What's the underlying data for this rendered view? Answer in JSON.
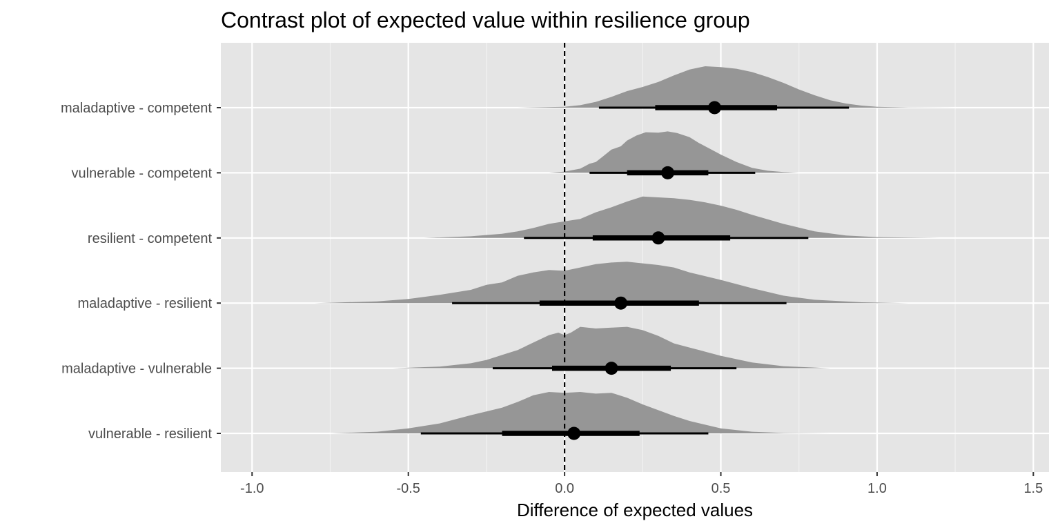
{
  "chart_data": {
    "type": "halfeye",
    "title": "Contrast plot of expected value within resilience group",
    "xlabel": "Difference of expected values",
    "ylabel": "",
    "xlim": [
      -1.1,
      1.55
    ],
    "x_ticks": [
      -1.0,
      -0.5,
      0.0,
      0.5,
      1.0,
      1.5
    ],
    "x_tick_labels": [
      "-1.0",
      "-0.5",
      "0.0",
      "0.5",
      "1.0",
      "1.5"
    ],
    "reference_line": {
      "x": 0,
      "style": "dashed"
    },
    "grid": true,
    "legend": "none",
    "colors": {
      "panel": "#e5e5e5",
      "grid": "#ffffff",
      "density": "#969696",
      "interval": "#000000",
      "point": "#000000"
    },
    "series": [
      {
        "name": "maladaptive - competent",
        "point": 0.48,
        "interval_66": [
          0.29,
          0.68
        ],
        "interval_95": [
          0.11,
          0.91
        ],
        "density": {
          "x": [
            -0.15,
            0.0,
            0.05,
            0.1,
            0.15,
            0.2,
            0.25,
            0.3,
            0.35,
            0.4,
            0.45,
            0.5,
            0.55,
            0.6,
            0.65,
            0.7,
            0.75,
            0.8,
            0.85,
            0.9,
            0.95,
            1.0,
            1.1,
            1.25
          ],
          "y": [
            0.0,
            0.02,
            0.06,
            0.14,
            0.26,
            0.4,
            0.5,
            0.62,
            0.78,
            0.92,
            1.0,
            0.98,
            0.94,
            0.86,
            0.74,
            0.6,
            0.44,
            0.3,
            0.18,
            0.1,
            0.05,
            0.02,
            0.005,
            0.0
          ]
        }
      },
      {
        "name": "vulnerable - competent",
        "point": 0.33,
        "interval_66": [
          0.2,
          0.46
        ],
        "interval_95": [
          0.08,
          0.61
        ],
        "density": {
          "x": [
            -0.05,
            0.0,
            0.05,
            0.08,
            0.1,
            0.12,
            0.15,
            0.18,
            0.2,
            0.23,
            0.26,
            0.3,
            0.33,
            0.36,
            0.4,
            0.43,
            0.46,
            0.5,
            0.55,
            0.6,
            0.65,
            0.7,
            0.75
          ],
          "y": [
            0.0,
            0.03,
            0.1,
            0.22,
            0.26,
            0.38,
            0.56,
            0.64,
            0.78,
            0.9,
            0.98,
            0.97,
            1.0,
            0.96,
            0.86,
            0.72,
            0.6,
            0.44,
            0.26,
            0.12,
            0.05,
            0.02,
            0.0
          ]
        }
      },
      {
        "name": "resilient - competent",
        "point": 0.3,
        "interval_66": [
          0.09,
          0.53
        ],
        "interval_95": [
          -0.13,
          0.78
        ],
        "density": {
          "x": [
            -0.45,
            -0.3,
            -0.2,
            -0.15,
            -0.1,
            -0.05,
            0.0,
            0.05,
            0.1,
            0.15,
            0.2,
            0.25,
            0.3,
            0.35,
            0.4,
            0.45,
            0.5,
            0.55,
            0.6,
            0.7,
            0.8,
            0.9,
            1.0,
            1.2
          ],
          "y": [
            0.0,
            0.04,
            0.1,
            0.16,
            0.24,
            0.34,
            0.4,
            0.46,
            0.62,
            0.74,
            0.88,
            1.0,
            0.98,
            0.96,
            0.92,
            0.86,
            0.78,
            0.68,
            0.56,
            0.34,
            0.16,
            0.06,
            0.02,
            0.0
          ]
        }
      },
      {
        "name": "maladaptive - resilient",
        "point": 0.18,
        "interval_66": [
          -0.08,
          0.43
        ],
        "interval_95": [
          -0.36,
          0.71
        ],
        "density": {
          "x": [
            -0.8,
            -0.6,
            -0.5,
            -0.4,
            -0.3,
            -0.25,
            -0.2,
            -0.15,
            -0.1,
            -0.05,
            0.0,
            0.05,
            0.1,
            0.15,
            0.2,
            0.25,
            0.3,
            0.35,
            0.4,
            0.5,
            0.6,
            0.7,
            0.8,
            0.95,
            1.1
          ],
          "y": [
            0.0,
            0.04,
            0.1,
            0.2,
            0.32,
            0.44,
            0.5,
            0.66,
            0.74,
            0.8,
            0.78,
            0.86,
            0.94,
            0.98,
            1.0,
            0.96,
            0.92,
            0.86,
            0.74,
            0.56,
            0.36,
            0.18,
            0.08,
            0.02,
            0.0
          ]
        }
      },
      {
        "name": "maladaptive - vulnerable",
        "point": 0.15,
        "interval_66": [
          -0.04,
          0.34
        ],
        "interval_95": [
          -0.23,
          0.55
        ],
        "density": {
          "x": [
            -0.55,
            -0.4,
            -0.3,
            -0.25,
            -0.2,
            -0.15,
            -0.1,
            -0.05,
            -0.02,
            0.0,
            0.02,
            0.05,
            0.1,
            0.15,
            0.2,
            0.25,
            0.3,
            0.35,
            0.4,
            0.45,
            0.5,
            0.6,
            0.7,
            0.85
          ],
          "y": [
            0.0,
            0.04,
            0.12,
            0.2,
            0.32,
            0.44,
            0.62,
            0.8,
            0.86,
            0.8,
            0.86,
            1.0,
            0.96,
            0.98,
            1.0,
            0.92,
            0.78,
            0.6,
            0.5,
            0.4,
            0.3,
            0.14,
            0.05,
            0.0
          ]
        }
      },
      {
        "name": "vulnerable - resilient",
        "point": 0.03,
        "interval_66": [
          -0.2,
          0.24
        ],
        "interval_95": [
          -0.46,
          0.46
        ],
        "density": {
          "x": [
            -0.75,
            -0.6,
            -0.5,
            -0.4,
            -0.3,
            -0.2,
            -0.15,
            -0.1,
            -0.05,
            0.0,
            0.05,
            0.1,
            0.15,
            0.2,
            0.25,
            0.3,
            0.35,
            0.4,
            0.5,
            0.6,
            0.7,
            0.85
          ],
          "y": [
            0.0,
            0.04,
            0.12,
            0.24,
            0.44,
            0.62,
            0.76,
            0.92,
            1.0,
            0.98,
            1.0,
            0.96,
            0.98,
            0.86,
            0.7,
            0.56,
            0.42,
            0.3,
            0.12,
            0.04,
            0.01,
            0.0
          ]
        }
      }
    ]
  }
}
